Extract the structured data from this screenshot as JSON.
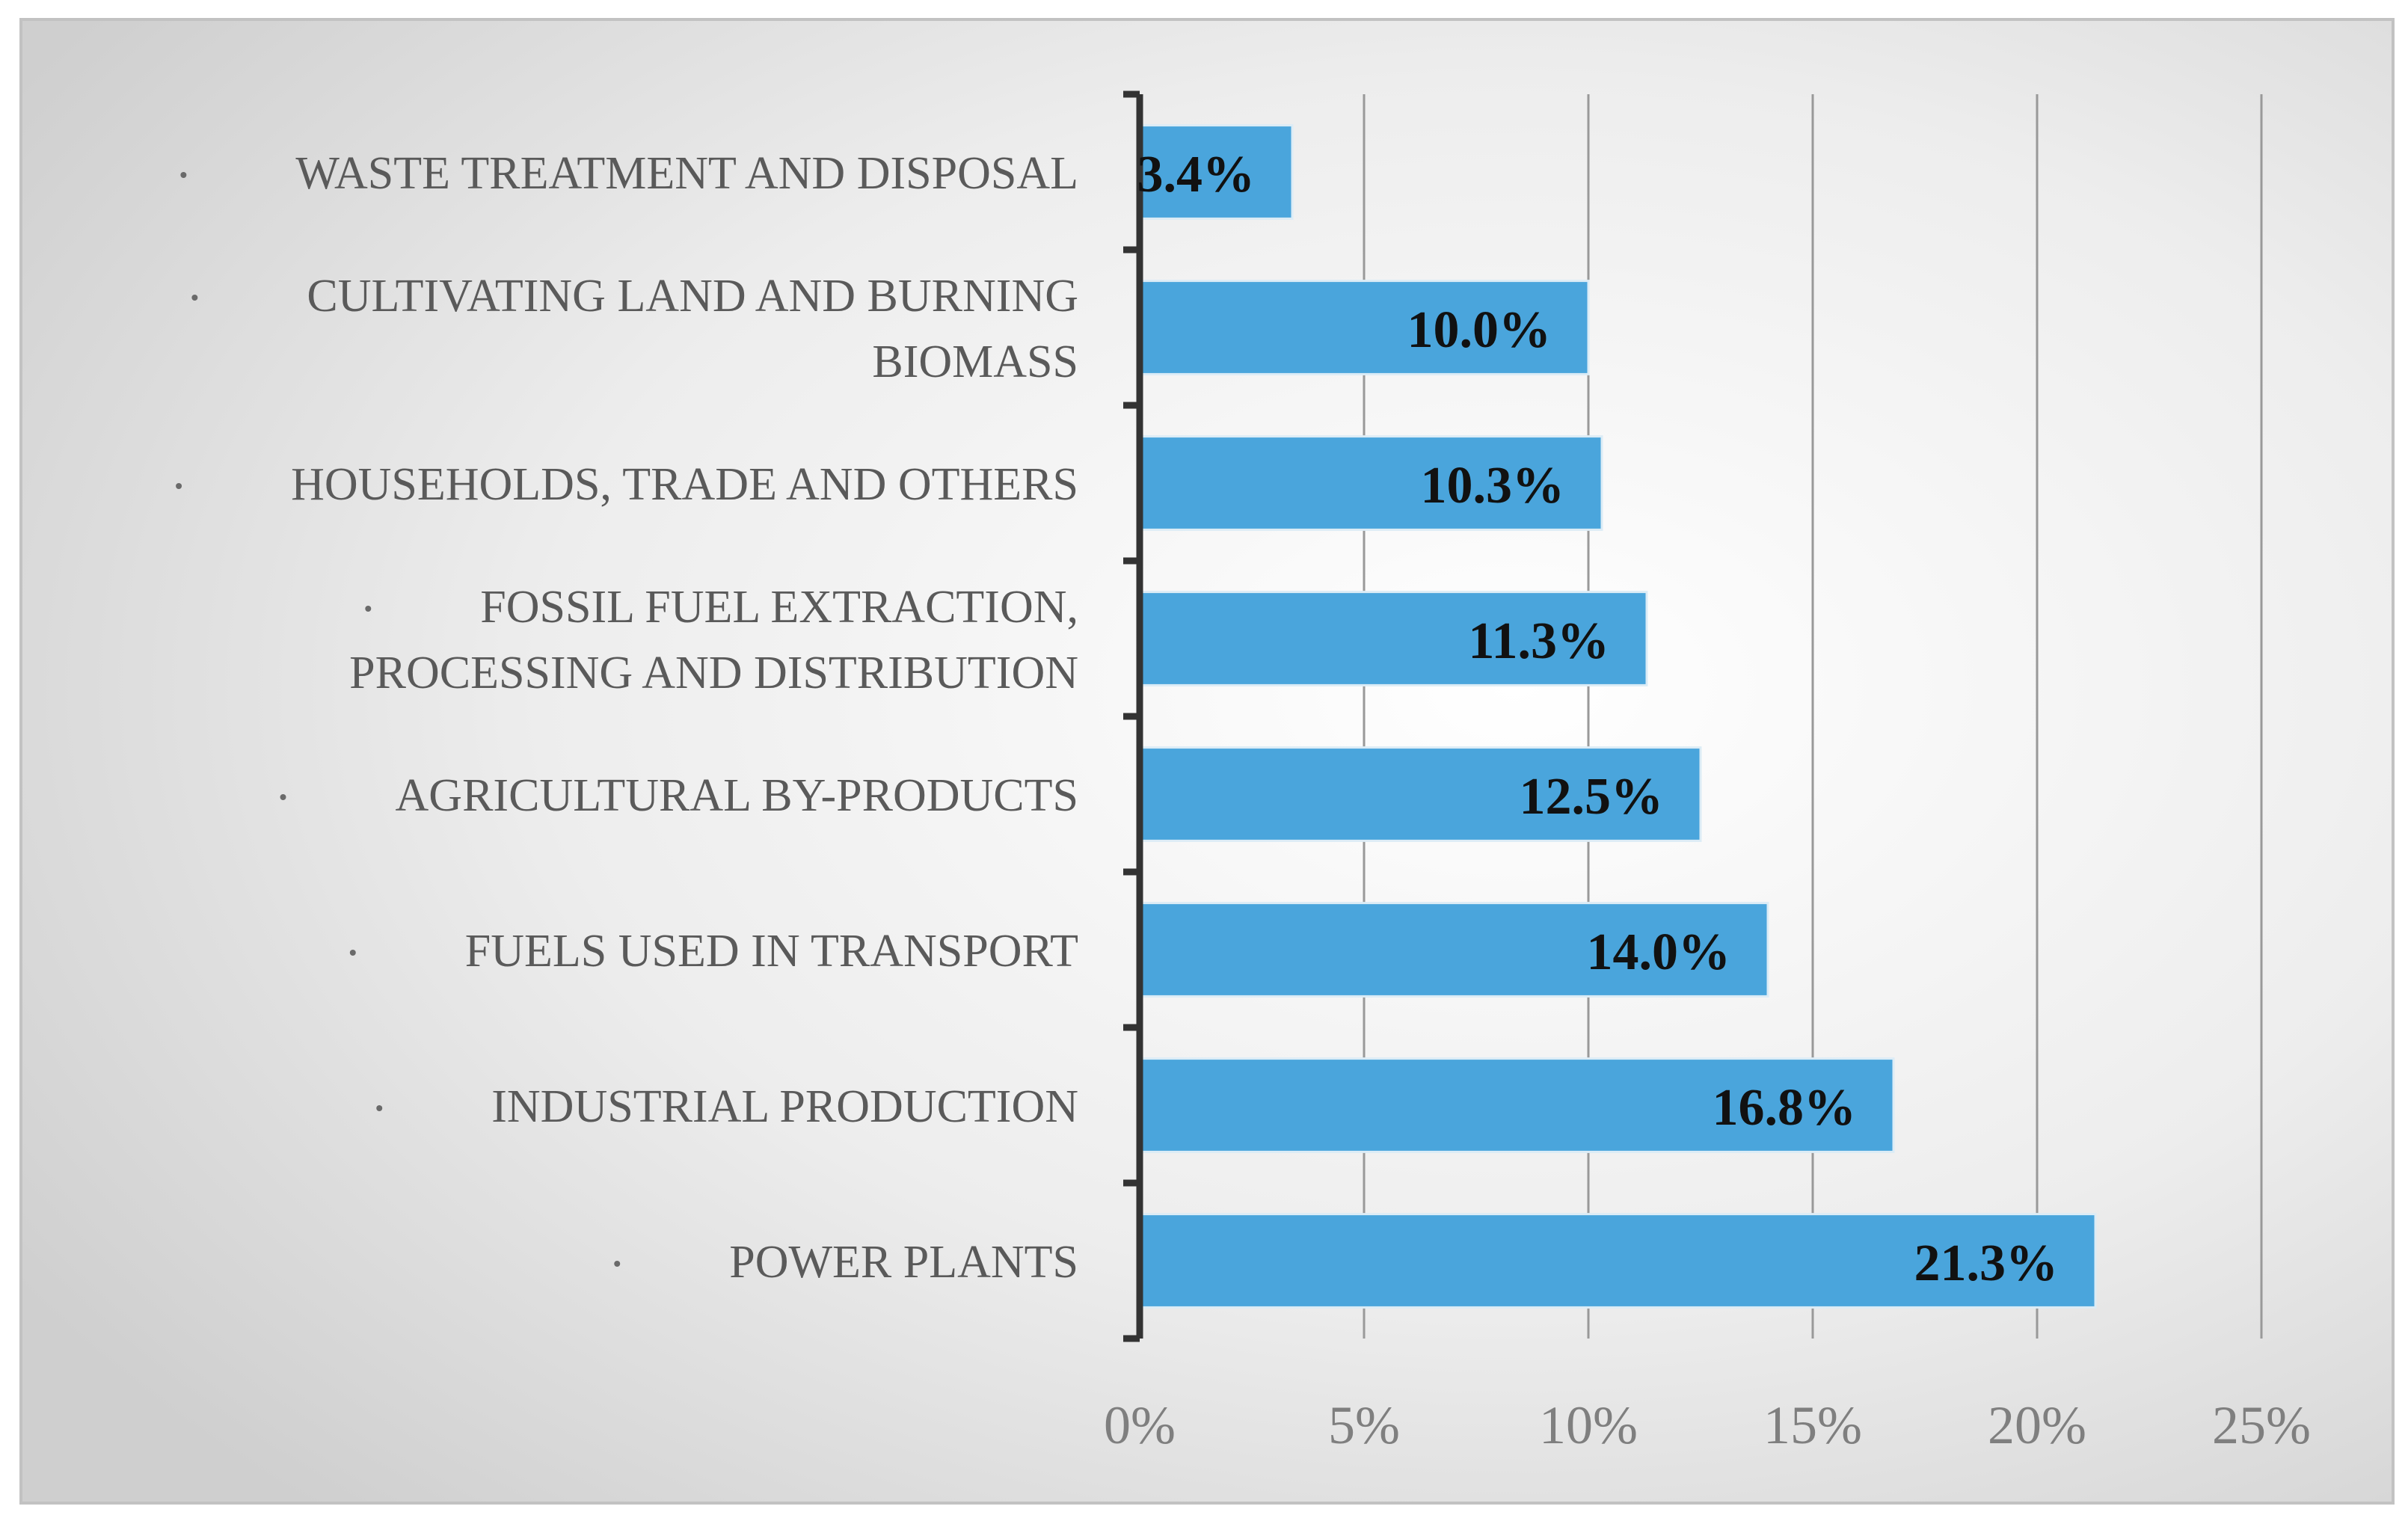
{
  "chart_data": {
    "type": "bar",
    "orientation": "horizontal",
    "title": "",
    "xlabel": "",
    "ylabel": "",
    "xlim": [
      0,
      25
    ],
    "grid": true,
    "legend": "none",
    "categories": [
      [
        "WASTE TREATMENT AND DISPOSAL"
      ],
      [
        "CULTIVATING LAND AND BURNING",
        "BIOMASS"
      ],
      [
        "HOUSEHOLDS, TRADE AND OTHERS"
      ],
      [
        "FOSSIL FUEL EXTRACTION,",
        "PROCESSING AND DISTRIBUTION"
      ],
      [
        "AGRICULTURAL BY-PRODUCTS"
      ],
      [
        "FUELS USED IN TRANSPORT"
      ],
      [
        "INDUSTRIAL PRODUCTION"
      ],
      [
        "POWER PLANTS"
      ]
    ],
    "values": [
      3.4,
      10.0,
      10.3,
      11.3,
      12.5,
      14.0,
      16.8,
      21.3
    ],
    "data_labels": [
      "3.4%",
      "10.0%",
      "10.3%",
      "11.3%",
      "12.5%",
      "14.0%",
      "16.8%",
      "21.3%"
    ],
    "x_ticks": [
      0,
      5,
      10,
      15,
      20,
      25
    ],
    "x_tick_labels": [
      "0%",
      "5%",
      "10%",
      "15%",
      "20%",
      "25%"
    ],
    "bar_color": "#4aa5dc",
    "bar_edge_color": "#dcecf6"
  }
}
